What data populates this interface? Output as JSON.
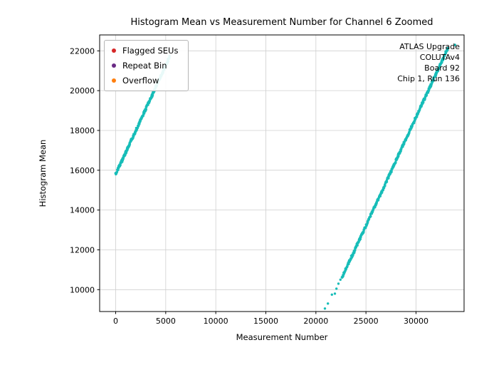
{
  "chart_data": {
    "type": "scatter",
    "title": "Histogram Mean vs Measurement Number for Channel 6 Zoomed",
    "xlabel": "Measurement Number",
    "ylabel": "Histogram Mean",
    "xlim": [
      -1600,
      34800
    ],
    "ylim": [
      8900,
      22800
    ],
    "xticks": [
      0,
      5000,
      10000,
      15000,
      20000,
      25000,
      30000
    ],
    "yticks": [
      10000,
      12000,
      14000,
      16000,
      18000,
      20000,
      22000
    ],
    "grid": true,
    "legend_position": "upper left",
    "series_color": "#17bdb8",
    "legend": [
      {
        "label": "Flagged SEUs",
        "color": "#d62728"
      },
      {
        "label": "Repeat Bin",
        "color": "#6a2a85"
      },
      {
        "label": "Overflow",
        "color": "#ff7f0e"
      }
    ],
    "annotation_lines": [
      "ATLAS Upgrade",
      "COLUTAv4",
      "Board 92",
      "Chip 1, Run 136"
    ],
    "segments": [
      {
        "name": "run-start-ramp",
        "x0": 0,
        "y0": 15800,
        "x1": 5400,
        "y1": 21700,
        "n": 300
      },
      {
        "name": "second-ramp",
        "x0": 22600,
        "y0": 10600,
        "x1": 33200,
        "y1": 22150,
        "n": 480
      }
    ],
    "scatter_points": [
      [
        20900,
        9050
      ],
      [
        21200,
        9300
      ],
      [
        21600,
        9750
      ],
      [
        21900,
        9800
      ],
      [
        22050,
        10050
      ],
      [
        22250,
        10300
      ],
      [
        22450,
        10500
      ],
      [
        33900,
        22300
      ]
    ]
  }
}
